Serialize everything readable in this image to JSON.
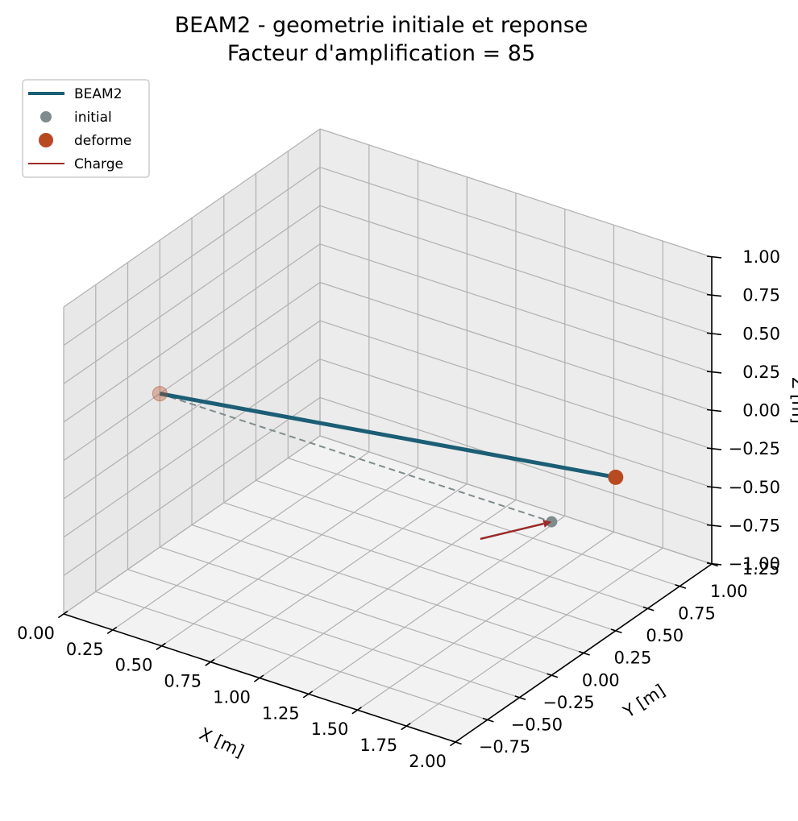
{
  "chart_data": {
    "type": "line3d",
    "title": "BEAM2 - geometrie initiale et reponse",
    "subtitle": "Facteur d'amplification = 85",
    "xlabel": "X [m]",
    "ylabel": "Y [m]",
    "zlabel": "Z [m]",
    "xlim": [
      0.0,
      2.0
    ],
    "ylim": [
      -0.75,
      1.25
    ],
    "zlim": [
      -1.0,
      1.0
    ],
    "x_ticks": [
      "0.00",
      "0.25",
      "0.50",
      "0.75",
      "1.00",
      "1.25",
      "1.50",
      "1.75",
      "2.00"
    ],
    "y_ticks": [
      "−0.75",
      "−0.50",
      "−0.25",
      "0.00",
      "0.25",
      "0.50",
      "0.75",
      "1.00",
      "1.25"
    ],
    "z_ticks": [
      "−1.00",
      "−0.75",
      "−0.50",
      "−0.25",
      "0.00",
      "0.25",
      "0.50",
      "0.75",
      "1.00"
    ],
    "grid": true,
    "legend_position": "top-left",
    "colors": {
      "beam": "#1b5e75",
      "initial": "#7f8c8d",
      "deforme": "#b84a22",
      "charge": "#9b2a2a"
    },
    "legend": [
      {
        "label": "BEAM2",
        "marker": "line",
        "color": "#1b5e75"
      },
      {
        "label": "initial",
        "marker": "dot",
        "color": "#7f8c8d"
      },
      {
        "label": "deforme",
        "marker": "dot-large",
        "color": "#b84a22"
      },
      {
        "label": "Charge",
        "marker": "thin-line",
        "color": "#9b2a2a"
      }
    ],
    "series": [
      {
        "name": "initial",
        "style": "dashed",
        "points": [
          [
            0.0,
            0.0,
            0.0
          ],
          [
            2.0,
            0.0,
            0.0
          ]
        ]
      },
      {
        "name": "BEAM2",
        "style": "solid",
        "points": [
          [
            0.0,
            0.0,
            0.0
          ],
          [
            2.0,
            0.5,
            0.0
          ]
        ]
      }
    ],
    "charge": {
      "name": "Charge",
      "from": [
        1.8,
        -0.25,
        -0.05
      ],
      "to": [
        2.0,
        0.0,
        0.0
      ]
    }
  }
}
